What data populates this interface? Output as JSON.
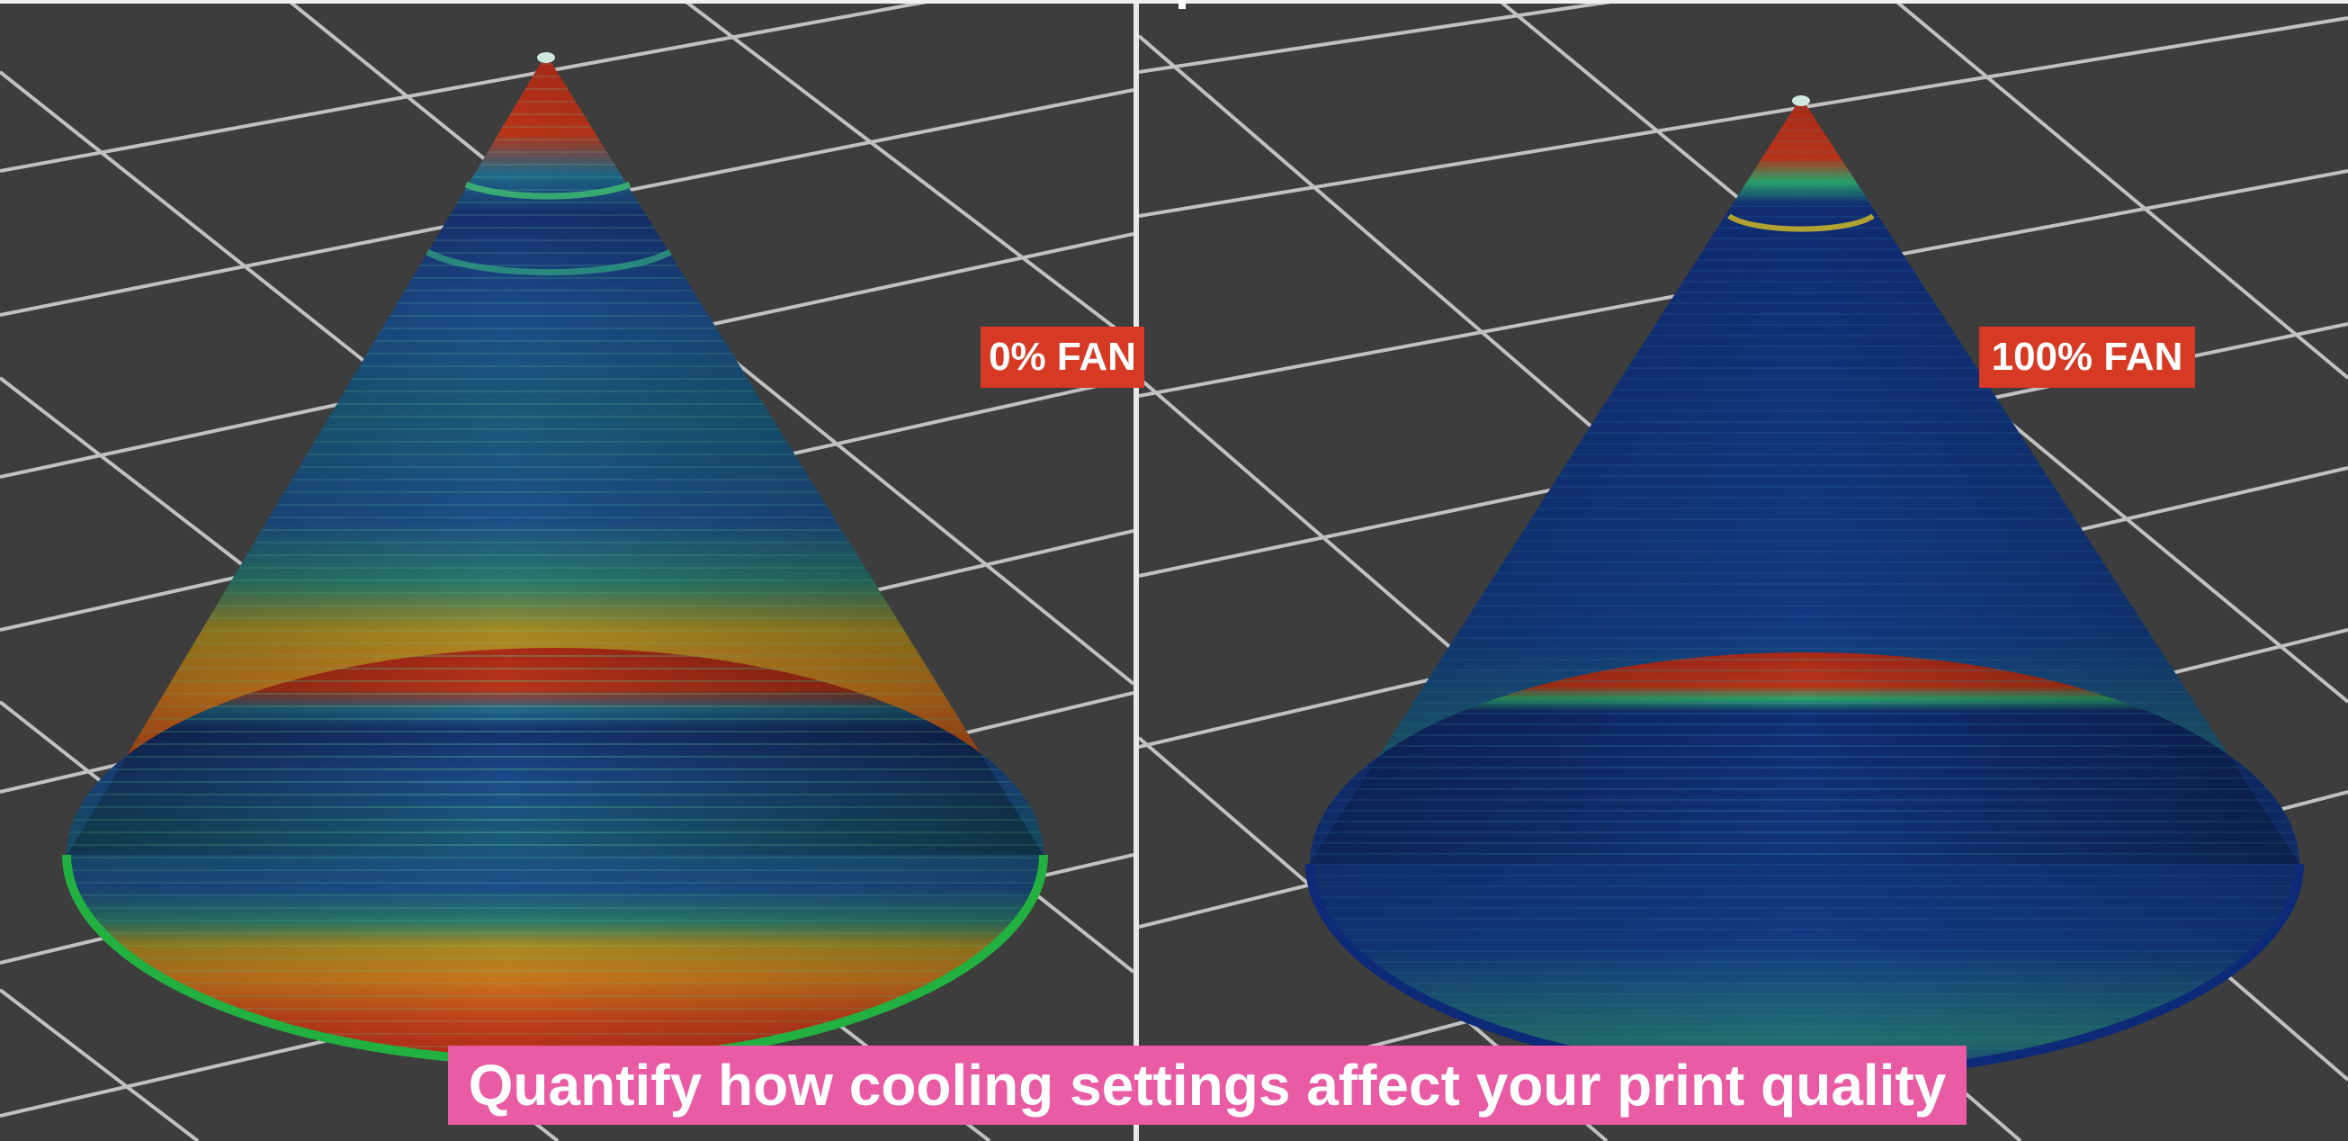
{
  "panels": {
    "left": {
      "label": "0% FAN"
    },
    "right": {
      "label": "100% FAN"
    }
  },
  "caption": "Quantify how cooling settings affect your print quality",
  "colors": {
    "background": "#3d3d3d",
    "grid": "#e6e6e6",
    "label_bg": "#d63a24",
    "caption_bg": "#e95ba4",
    "hot": "#c83018",
    "warm": "#d8a020",
    "mid": "#2aa36a",
    "cool": "#0f2f7a"
  }
}
